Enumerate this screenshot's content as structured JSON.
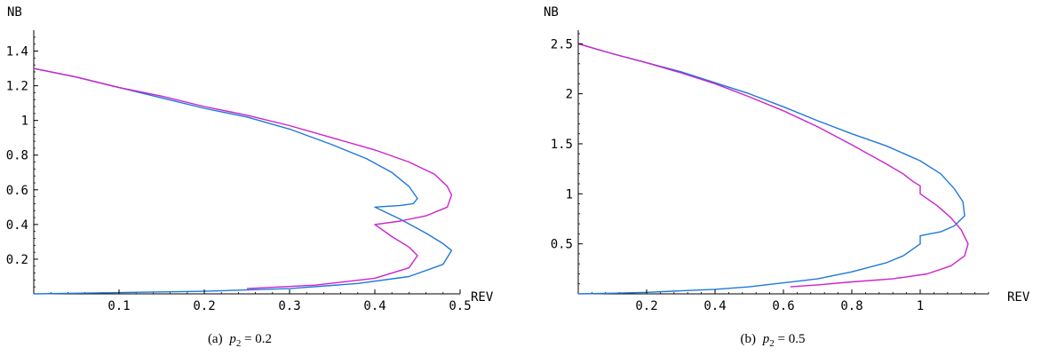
{
  "chart_data": [
    {
      "type": "line",
      "caption_prefix": "(a)",
      "caption_var": "p",
      "caption_sub": "2",
      "caption_rest": " = 0.2",
      "xlabel": "REV",
      "ylabel": "NB",
      "xlim": [
        0,
        0.5
      ],
      "ylim": [
        0,
        1.5
      ],
      "xticks": [
        0.1,
        0.2,
        0.3,
        0.4,
        0.5
      ],
      "xtick_labels": [
        "0.1",
        "0.2",
        "0.3",
        "0.4",
        "0.5"
      ],
      "yticks": [
        0.2,
        0.4,
        0.6,
        0.8,
        1,
        1.2,
        1.4
      ],
      "ytick_labels": [
        "0.2",
        "0.4",
        "0.6",
        "0.8",
        "1",
        "1.2",
        "1.4"
      ],
      "series": [
        {
          "color": "#1f78d8",
          "x": [
            0,
            0.05,
            0.1,
            0.15,
            0.2,
            0.25,
            0.3,
            0.35,
            0.39,
            0.42,
            0.44,
            0.45,
            0.445,
            0.43,
            0.4,
            0.43,
            0.46,
            0.48,
            0.49,
            0.48,
            0.44,
            0.38,
            0.3,
            0.2,
            0.1,
            0.03,
            0
          ],
          "y": [
            1.3,
            1.25,
            1.19,
            1.13,
            1.07,
            1.02,
            0.95,
            0.86,
            0.78,
            0.7,
            0.62,
            0.55,
            0.52,
            0.51,
            0.5,
            0.43,
            0.35,
            0.29,
            0.25,
            0.17,
            0.1,
            0.06,
            0.03,
            0.015,
            0.007,
            0.002,
            0
          ]
        },
        {
          "color": "#cc22cc",
          "x": [
            0,
            0.05,
            0.1,
            0.15,
            0.2,
            0.25,
            0.3,
            0.35,
            0.4,
            0.44,
            0.47,
            0.485,
            0.49,
            0.485,
            0.46,
            0.43,
            0.4,
            0.42,
            0.44,
            0.45,
            0.44,
            0.4,
            0.33,
            0.25
          ],
          "y": [
            1.3,
            1.25,
            1.19,
            1.14,
            1.08,
            1.03,
            0.97,
            0.9,
            0.83,
            0.76,
            0.69,
            0.62,
            0.57,
            0.5,
            0.45,
            0.42,
            0.4,
            0.33,
            0.27,
            0.22,
            0.15,
            0.09,
            0.05,
            0.03
          ]
        }
      ]
    },
    {
      "type": "line",
      "caption_prefix": "(b)",
      "caption_var": "p",
      "caption_sub": "2",
      "caption_rest": " = 0.5",
      "xlabel": "REV",
      "ylabel": "NB",
      "xlim": [
        0,
        1.2
      ],
      "ylim": [
        0,
        2.6
      ],
      "xticks": [
        0.2,
        0.4,
        0.6,
        0.8,
        1
      ],
      "xtick_labels": [
        "0.2",
        "0.4",
        "0.6",
        "0.8",
        "1"
      ],
      "yticks": [
        0.5,
        1,
        1.5,
        2,
        2.5
      ],
      "ytick_labels": [
        "0.5",
        "1",
        "1.5",
        "2",
        "2.5"
      ],
      "series": [
        {
          "color": "#1f78d8",
          "x": [
            0,
            0.1,
            0.2,
            0.3,
            0.4,
            0.5,
            0.6,
            0.7,
            0.8,
            0.9,
            1.0,
            1.06,
            1.1,
            1.125,
            1.13,
            1.1,
            1.06,
            1.0,
            1.0,
            0.95,
            0.9,
            0.8,
            0.7,
            0.6,
            0.5,
            0.4,
            0.3,
            0.2,
            0.1,
            0
          ],
          "y": [
            2.5,
            2.4,
            2.31,
            2.22,
            2.11,
            2.0,
            1.87,
            1.73,
            1.6,
            1.48,
            1.33,
            1.2,
            1.05,
            0.92,
            0.78,
            0.68,
            0.62,
            0.58,
            0.5,
            0.38,
            0.31,
            0.22,
            0.15,
            0.11,
            0.07,
            0.045,
            0.03,
            0.015,
            0.006,
            0
          ]
        },
        {
          "color": "#cc22cc",
          "x": [
            0,
            0.1,
            0.2,
            0.3,
            0.4,
            0.5,
            0.6,
            0.7,
            0.8,
            0.9,
            0.95,
            0.98,
            1.0,
            1.0,
            1.05,
            1.09,
            1.12,
            1.14,
            1.13,
            1.09,
            1.02,
            0.92,
            0.8,
            0.7,
            0.62
          ],
          "y": [
            2.5,
            2.4,
            2.31,
            2.21,
            2.1,
            1.97,
            1.83,
            1.67,
            1.49,
            1.3,
            1.2,
            1.12,
            1.08,
            1.0,
            0.88,
            0.76,
            0.64,
            0.5,
            0.38,
            0.28,
            0.2,
            0.15,
            0.12,
            0.09,
            0.07
          ]
        }
      ]
    }
  ]
}
